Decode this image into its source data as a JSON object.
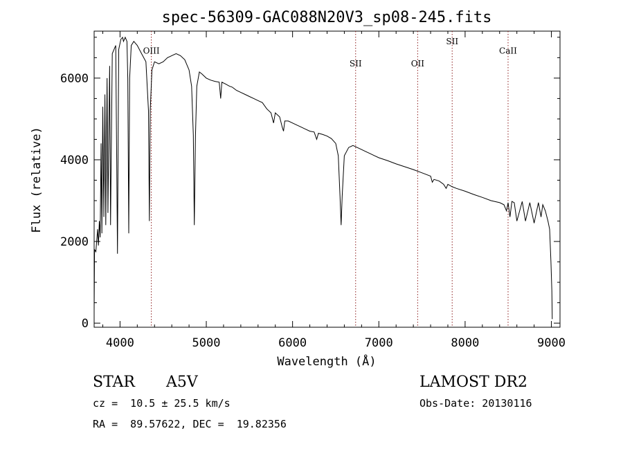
{
  "chart_data": {
    "type": "line",
    "title": "spec-56309-GAC088N20V3_sp08-245.fits",
    "xlabel": "Wavelength (Å)",
    "ylabel": "Flux (relative)",
    "xlim": [
      3700,
      9100
    ],
    "ylim": [
      -100,
      7150
    ],
    "x_ticks": [
      4000,
      5000,
      6000,
      7000,
      8000,
      9000
    ],
    "y_ticks": [
      0,
      2000,
      4000,
      6000
    ],
    "grid": false,
    "line_color": "#000000",
    "marker_color": "#8b1a1a",
    "spectral_lines": [
      {
        "label": "OIII",
        "x": 4363,
        "label_y": 6600
      },
      {
        "label": "SII",
        "x": 6731,
        "label_y": 6290
      },
      {
        "label": "OII",
        "x": 7450,
        "label_y": 6290
      },
      {
        "label": "SII",
        "x": 7850,
        "label_y": 6830
      },
      {
        "label": "CaII",
        "x": 8498,
        "label_y": 6600
      }
    ],
    "series": [
      {
        "values": [
          [
            3700,
            300
          ],
          [
            3705,
            1800
          ],
          [
            3720,
            1750
          ],
          [
            3740,
            2300
          ],
          [
            3750,
            1900
          ],
          [
            3760,
            2500
          ],
          [
            3770,
            2100
          ],
          [
            3780,
            4400
          ],
          [
            3790,
            2200
          ],
          [
            3800,
            5300
          ],
          [
            3812,
            2600
          ],
          [
            3825,
            5600
          ],
          [
            3835,
            2400
          ],
          [
            3850,
            6000
          ],
          [
            3860,
            2700
          ],
          [
            3880,
            6300
          ],
          [
            3890,
            2400
          ],
          [
            3910,
            6600
          ],
          [
            3930,
            6700
          ],
          [
            3950,
            6800
          ],
          [
            3970,
            1700
          ],
          [
            3985,
            6700
          ],
          [
            4010,
            6950
          ],
          [
            4030,
            7000
          ],
          [
            4040,
            6900
          ],
          [
            4060,
            7000
          ],
          [
            4080,
            6900
          ],
          [
            4090,
            6000
          ],
          [
            4101,
            2200
          ],
          [
            4112,
            6000
          ],
          [
            4130,
            6800
          ],
          [
            4160,
            6900
          ],
          [
            4200,
            6800
          ],
          [
            4250,
            6600
          ],
          [
            4300,
            6400
          ],
          [
            4330,
            5200
          ],
          [
            4340,
            2500
          ],
          [
            4350,
            5200
          ],
          [
            4370,
            6200
          ],
          [
            4400,
            6400
          ],
          [
            4450,
            6350
          ],
          [
            4500,
            6400
          ],
          [
            4550,
            6500
          ],
          [
            4600,
            6550
          ],
          [
            4650,
            6600
          ],
          [
            4700,
            6550
          ],
          [
            4750,
            6450
          ],
          [
            4800,
            6200
          ],
          [
            4830,
            5800
          ],
          [
            4850,
            4600
          ],
          [
            4861,
            2400
          ],
          [
            4875,
            4600
          ],
          [
            4890,
            5800
          ],
          [
            4920,
            6150
          ],
          [
            4950,
            6100
          ],
          [
            5000,
            6000
          ],
          [
            5050,
            5950
          ],
          [
            5100,
            5920
          ],
          [
            5150,
            5900
          ],
          [
            5167,
            5500
          ],
          [
            5180,
            5900
          ],
          [
            5220,
            5860
          ],
          [
            5270,
            5800
          ],
          [
            5300,
            5780
          ],
          [
            5350,
            5700
          ],
          [
            5400,
            5650
          ],
          [
            5450,
            5600
          ],
          [
            5500,
            5550
          ],
          [
            5550,
            5500
          ],
          [
            5600,
            5450
          ],
          [
            5650,
            5400
          ],
          [
            5700,
            5250
          ],
          [
            5750,
            5150
          ],
          [
            5780,
            4900
          ],
          [
            5800,
            5150
          ],
          [
            5850,
            5050
          ],
          [
            5880,
            4800
          ],
          [
            5895,
            4700
          ],
          [
            5910,
            4950
          ],
          [
            5950,
            4950
          ],
          [
            6000,
            4900
          ],
          [
            6050,
            4850
          ],
          [
            6100,
            4800
          ],
          [
            6150,
            4750
          ],
          [
            6200,
            4700
          ],
          [
            6250,
            4680
          ],
          [
            6280,
            4500
          ],
          [
            6300,
            4650
          ],
          [
            6350,
            4620
          ],
          [
            6400,
            4580
          ],
          [
            6450,
            4520
          ],
          [
            6500,
            4400
          ],
          [
            6530,
            4100
          ],
          [
            6550,
            3100
          ],
          [
            6563,
            2400
          ],
          [
            6575,
            3100
          ],
          [
            6600,
            4100
          ],
          [
            6650,
            4300
          ],
          [
            6700,
            4350
          ],
          [
            6750,
            4300
          ],
          [
            6800,
            4250
          ],
          [
            6850,
            4200
          ],
          [
            6900,
            4150
          ],
          [
            6950,
            4100
          ],
          [
            7000,
            4050
          ],
          [
            7100,
            3980
          ],
          [
            7200,
            3900
          ],
          [
            7300,
            3830
          ],
          [
            7400,
            3760
          ],
          [
            7500,
            3680
          ],
          [
            7600,
            3600
          ],
          [
            7620,
            3450
          ],
          [
            7640,
            3520
          ],
          [
            7700,
            3480
          ],
          [
            7750,
            3400
          ],
          [
            7780,
            3300
          ],
          [
            7800,
            3400
          ],
          [
            7850,
            3340
          ],
          [
            7900,
            3300
          ],
          [
            8000,
            3230
          ],
          [
            8100,
            3150
          ],
          [
            8200,
            3080
          ],
          [
            8300,
            3000
          ],
          [
            8400,
            2950
          ],
          [
            8450,
            2900
          ],
          [
            8480,
            2750
          ],
          [
            8498,
            2950
          ],
          [
            8520,
            2600
          ],
          [
            8542,
            2980
          ],
          [
            8570,
            2950
          ],
          [
            8600,
            2500
          ],
          [
            8662,
            2980
          ],
          [
            8700,
            2500
          ],
          [
            8750,
            2950
          ],
          [
            8800,
            2450
          ],
          [
            8850,
            2950
          ],
          [
            8880,
            2600
          ],
          [
            8900,
            2900
          ],
          [
            8930,
            2750
          ],
          [
            8960,
            2500
          ],
          [
            8980,
            2300
          ],
          [
            8995,
            1500
          ],
          [
            9005,
            800
          ],
          [
            9010,
            100
          ]
        ]
      }
    ]
  },
  "info": {
    "object_type": "STAR",
    "subclass": "A5V",
    "survey": "LAMOST DR2",
    "redshift": "cz =  10.5 ± 25.5 km/s",
    "obs_date": "Obs-Date: 20130116",
    "coords": "RA =  89.57622, DEC =  19.82356"
  }
}
